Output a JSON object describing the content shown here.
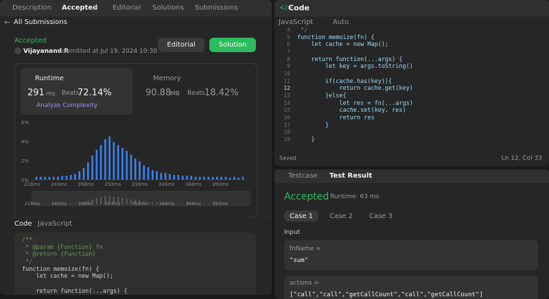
{
  "left_tabs": [
    "Description",
    "Accepted",
    "Editorial",
    "Solutions",
    "Submissions"
  ],
  "back_link": "All Submissions",
  "submission": {
    "status": "Accepted",
    "author": "Vijayanand R",
    "submitted": "submitted at Jul 19, 2024 10:30",
    "buttons": [
      "Editorial",
      "Solution"
    ]
  },
  "stats": {
    "runtime": {
      "label": "Runtime",
      "value": "291",
      "unit": "ms",
      "beats_label": "Beats",
      "beats": "72.14%",
      "action": "Analyze Complexity"
    },
    "memory": {
      "label": "Memory",
      "value": "90.88",
      "unit": "MB",
      "beats_label": "Beats",
      "beats": "18.42%"
    }
  },
  "chart_data": {
    "type": "bar",
    "color": "#3b82f6",
    "x": [
      222,
      226,
      230,
      234,
      238,
      242,
      246,
      250,
      254,
      258,
      262,
      266,
      270,
      274,
      278,
      282,
      286,
      290,
      294,
      298,
      302,
      306,
      310,
      314,
      318,
      322,
      326,
      330,
      334,
      338,
      342,
      346,
      350,
      354,
      358,
      362,
      366,
      370,
      374,
      378,
      382,
      386,
      390,
      394,
      398,
      402,
      406,
      410,
      414
    ],
    "values": [
      0.3,
      0.3,
      0.3,
      0.3,
      0.3,
      0.3,
      0.4,
      0.4,
      0.5,
      0.6,
      0.9,
      1.2,
      1.8,
      2.5,
      3.1,
      3.6,
      4.2,
      4.5,
      3.9,
      3.6,
      3.3,
      3.0,
      2.6,
      2.2,
      1.9,
      1.5,
      1.3,
      1.0,
      0.9,
      0.7,
      0.7,
      0.6,
      0.5,
      0.5,
      0.4,
      0.4,
      0.4,
      0.3,
      0.3,
      0.3,
      0.3,
      0.3,
      0.3,
      0.3,
      0.3,
      0.2,
      0.3,
      0.2,
      0.3
    ],
    "xlim": [
      206,
      423
    ],
    "xticks": [
      {
        "value": 218,
        "label": "218ms"
      },
      {
        "value": 243,
        "label": "243ms"
      },
      {
        "value": 268,
        "label": "268ms"
      },
      {
        "value": 293,
        "label": "293ms"
      },
      {
        "value": 318,
        "label": "318ms"
      },
      {
        "value": 343,
        "label": "343ms"
      },
      {
        "value": 368,
        "label": "368ms"
      },
      {
        "value": 393,
        "label": "393ms"
      }
    ],
    "ylim": [
      0,
      6.2
    ],
    "yticks": [
      {
        "value": 0,
        "label": "0%"
      },
      {
        "value": 2,
        "label": "2%"
      },
      {
        "value": 4,
        "label": "4%"
      },
      {
        "value": 6,
        "label": "6%"
      }
    ],
    "grid": true
  },
  "code_header": {
    "label": "Code",
    "language": "JavaScript"
  },
  "code_preview": [
    "/**",
    " * @param {Function} fn",
    " * @return {Function}",
    " */",
    "function memoize(fn) {",
    "    let cache = new Map();",
    null,
    "    return function(...args) {"
  ],
  "editor": {
    "title": "Code",
    "language": "JavaScript",
    "mode": "Auto",
    "lines": [
      {
        "number": 4,
        "code": " */"
      },
      {
        "number": 5,
        "code": "function memoize(fn) {"
      },
      {
        "number": 6,
        "code": "    let cache = new Map();"
      },
      {
        "number": 7
      },
      {
        "number": 8,
        "code": "    return function(...args) {"
      },
      {
        "number": 9,
        "code": "        let key = args.toString()"
      },
      {
        "number": 10
      },
      {
        "number": 11,
        "code": "        if(cache.has(key)){"
      },
      {
        "number": 12,
        "code": "            return cache.get(key)"
      },
      {
        "number": 13,
        "code": "        }else{"
      },
      {
        "number": 14,
        "code": "            let res = fn(...args)"
      },
      {
        "number": 15,
        "code": "            cache.set(key, res)"
      },
      {
        "number": 16,
        "code": "            return res"
      },
      {
        "number": 17,
        "code": "        }"
      },
      {
        "number": 18
      },
      {
        "number": 19,
        "code": "    }"
      }
    ],
    "status": "Saved",
    "cursor": "Ln 12, Col 33"
  },
  "testcase": {
    "tabs": [
      "Testcase",
      "Test Result"
    ],
    "result": "Accepted",
    "runtime": "Runtime: 63 ms",
    "cases": [
      "Case 1",
      "Case 2",
      "Case 3"
    ],
    "input_label": "Input",
    "inputs": [
      {
        "name": "fnName =",
        "value": "\"sum\""
      },
      {
        "name": "actions =",
        "value": "[\"call\",\"call\",\"getCallCount\",\"call\",\"getCallCount\"]"
      }
    ]
  }
}
